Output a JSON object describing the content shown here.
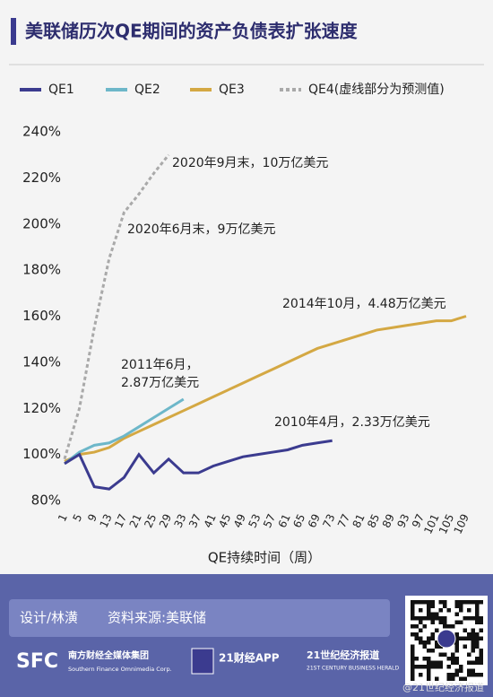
{
  "chart_data": {
    "type": "line",
    "title": "美联储历次QE期间的资产负债表扩张速度",
    "x_label": "QE持续时间（周）",
    "x": [
      1,
      5,
      9,
      13,
      17,
      21,
      25,
      29,
      33,
      37,
      41,
      45,
      49,
      53,
      57,
      61,
      65,
      69,
      73,
      77,
      81,
      85,
      89,
      93,
      97,
      101,
      105,
      109
    ],
    "xlim": [
      1,
      109
    ],
    "xticks": [
      1,
      5,
      9,
      13,
      17,
      21,
      25,
      29,
      33,
      37,
      41,
      45,
      49,
      53,
      57,
      61,
      65,
      69,
      73,
      77,
      81,
      85,
      89,
      93,
      97,
      101,
      105,
      109
    ],
    "ylim": [
      80,
      240
    ],
    "yticks": [
      {
        "value": 80,
        "label": "80%"
      },
      {
        "value": 100,
        "label": "100%"
      },
      {
        "value": 120,
        "label": "120%"
      },
      {
        "value": 140,
        "label": "140%"
      },
      {
        "value": 160,
        "label": "160%"
      },
      {
        "value": 180,
        "label": "180%"
      },
      {
        "value": 200,
        "label": "200%"
      },
      {
        "value": 220,
        "label": "220%"
      },
      {
        "value": 240,
        "label": "240%"
      }
    ],
    "series": [
      {
        "name": "QE1",
        "color": "#3b3b8f",
        "values": [
          96,
          100,
          86,
          85,
          90,
          100,
          92,
          98,
          92,
          92,
          95,
          97,
          99,
          100,
          101,
          102,
          104,
          105,
          106,
          null,
          null,
          null,
          null,
          null,
          null,
          null,
          null,
          null
        ]
      },
      {
        "name": "QE2",
        "color": "#6db7c9",
        "values": [
          96,
          101,
          104,
          105,
          108,
          112,
          116,
          120,
          124,
          null,
          null,
          null,
          null,
          null,
          null,
          null,
          null,
          null,
          null,
          null,
          null,
          null,
          null,
          null,
          null,
          null,
          null,
          null
        ]
      },
      {
        "name": "QE3",
        "color": "#d4a843",
        "values": [
          97,
          100,
          101,
          103,
          107,
          110,
          113,
          116,
          119,
          122,
          125,
          128,
          131,
          134,
          137,
          140,
          143,
          146,
          148,
          150,
          152,
          154,
          155,
          156,
          157,
          158,
          158,
          160
        ]
      },
      {
        "name": "QE4(虚线部分为预测值)",
        "color": "#a9a9a9",
        "dashed": true,
        "values": [
          98,
          120,
          155,
          185,
          205,
          213,
          222,
          230,
          null,
          null,
          null,
          null,
          null,
          null,
          null,
          null,
          null,
          null,
          null,
          null,
          null,
          null,
          null,
          null,
          null,
          null,
          null,
          null
        ]
      }
    ],
    "annotations": [
      [
        "2020年9月末，10万亿美元"
      ],
      [
        "2020年6月末，9万亿美元"
      ],
      [
        "2014年10月，4.48万亿美元"
      ],
      [
        "2011年6月，",
        "2.87万亿美元"
      ],
      [
        "2010年4月，2.33万亿美元"
      ]
    ]
  },
  "footer": {
    "credit": "设计/林潢",
    "source": "资料来源:美联储",
    "logos": [
      "SFC",
      "南方财经全媒体集团",
      "Southern Finance Omnimedia Corp.",
      "21财经APP",
      "21世纪经济报道",
      "21ST CENTURY BUSINESS HERALD"
    ],
    "watermark": "@21世纪经济报道"
  }
}
